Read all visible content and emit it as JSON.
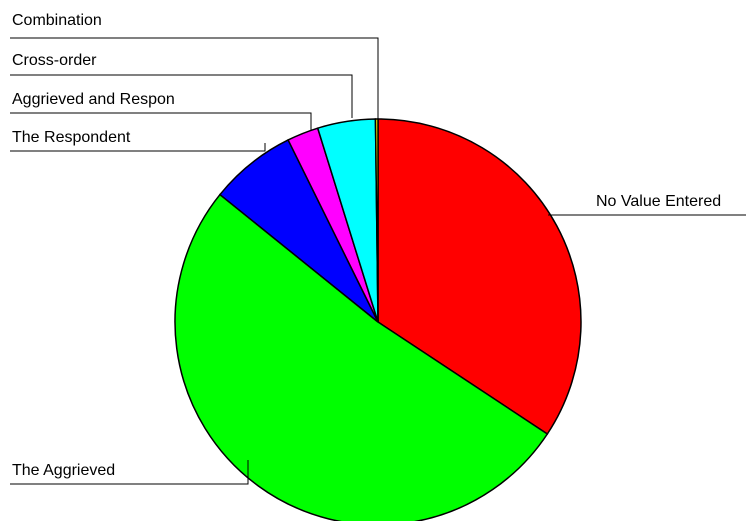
{
  "chart_data": {
    "type": "pie",
    "title": "",
    "start": "top, clockwise",
    "categories": [
      "No Value Entered",
      "The Aggrieved",
      "The Respondent",
      "Aggrieved and Respon",
      "Cross-order",
      "Combination"
    ],
    "values": [
      34.3,
      51.5,
      6.9,
      2.5,
      4.6,
      0.2
    ],
    "colors": [
      "#ff0000",
      "#00ff00",
      "#0000ff",
      "#ff00ff",
      "#00ffff",
      "#ffff00"
    ],
    "legend": "none (leader-line labels)"
  }
}
